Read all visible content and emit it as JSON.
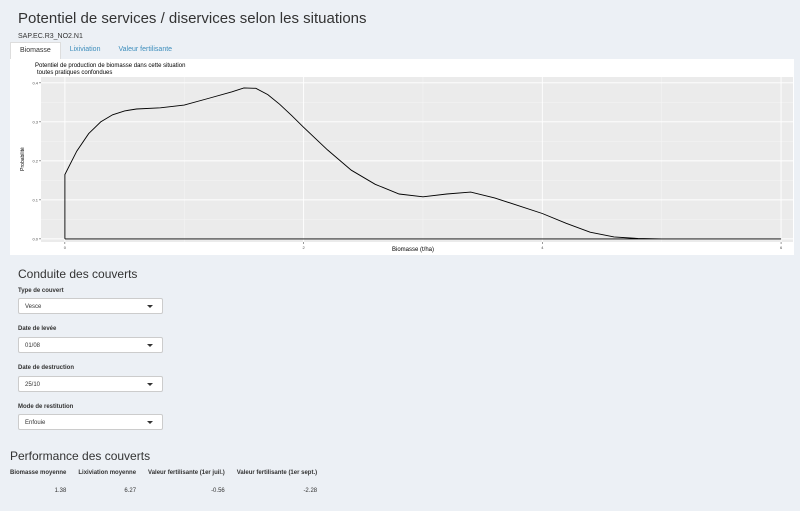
{
  "header": {
    "title": "Potentiel de services / diservices selon les situations",
    "situation_code": "SAP.EC.R3_NO2.N1"
  },
  "tabs": [
    {
      "label": "Biomasse",
      "active": true
    },
    {
      "label": "Lixiviation",
      "active": false
    },
    {
      "label": "Valeur fertilisante",
      "active": false
    }
  ],
  "colors": {
    "accent": "#3c8dbc",
    "background": "#ecf0f5",
    "panel_bg": "#ebebeb"
  },
  "chart_data": {
    "type": "line",
    "title": "Potentiel de production de biomasse dans cette situation",
    "subtitle": "toutes pratiques confondues",
    "xlabel": "Biomasse (t/ha)",
    "ylabel": "Probabilité",
    "xlim": [
      -0.2,
      6.1
    ],
    "ylim": [
      -0.008,
      0.415
    ],
    "x_ticks": [
      0,
      2,
      4,
      6
    ],
    "y_ticks": [
      0.0,
      0.1,
      0.2,
      0.3,
      0.4
    ],
    "x_tick_labels": [
      "0",
      "2",
      "4",
      "6"
    ],
    "y_tick_labels": [
      "0.0",
      "0.1",
      "0.2",
      "0.3",
      "0.4"
    ],
    "grid": true,
    "series": [
      {
        "x": [
          0,
          0,
          0.1,
          0.2,
          0.3,
          0.4,
          0.5,
          0.6,
          0.8,
          1.0,
          1.2,
          1.4,
          1.5,
          1.6,
          1.7,
          1.8,
          1.9,
          2.0,
          2.2,
          2.4,
          2.6,
          2.8,
          3.0,
          3.2,
          3.4,
          3.6,
          3.8,
          4.0,
          4.2,
          4.4,
          4.6,
          4.8,
          5.0,
          5.2,
          6.0,
          6.0,
          0
        ],
        "y": [
          0.0,
          0.165,
          0.225,
          0.27,
          0.3,
          0.318,
          0.328,
          0.333,
          0.336,
          0.343,
          0.36,
          0.377,
          0.387,
          0.386,
          0.37,
          0.345,
          0.316,
          0.286,
          0.228,
          0.176,
          0.14,
          0.115,
          0.108,
          0.115,
          0.12,
          0.105,
          0.085,
          0.065,
          0.04,
          0.017,
          0.005,
          0.001,
          0.0,
          0.0,
          0.0,
          0.0,
          0.0
        ]
      }
    ]
  },
  "conduite": {
    "title": "Conduite des couverts",
    "fields": [
      {
        "label": "Type de couvert",
        "value": "Vesce"
      },
      {
        "label": "Date de levée",
        "value": "01/08"
      },
      {
        "label": "Date de destruction",
        "value": "25/10"
      },
      {
        "label": "Mode de restitution",
        "value": "Enfouie"
      }
    ]
  },
  "performance": {
    "title": "Performance des couverts",
    "headers": [
      "Biomasse moyenne",
      "Lixiviation moyenne",
      "Valeur fertilisante (1er juil.)",
      "Valeur fertilisante (1er sept.)"
    ],
    "values": [
      "1.38",
      "6.27",
      "-0.56",
      "-2.28"
    ]
  }
}
